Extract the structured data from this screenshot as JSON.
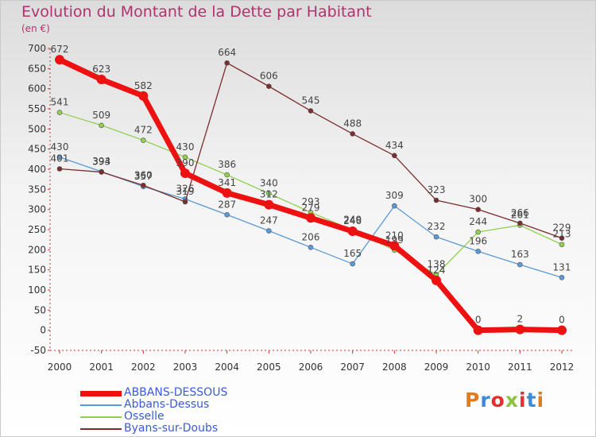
{
  "header": {
    "title": "Evolution du Montant de la Dette par Habitant",
    "unit": "(en €)"
  },
  "brand": {
    "text": "Proxiti",
    "colors": [
      "#e07b20",
      "#3c8ad8",
      "#e03030",
      "#8ac43c",
      "#e03030",
      "#3c8ad8",
      "#e07b20"
    ]
  },
  "chart_data": {
    "type": "line",
    "title": "Evolution du Montant de la Dette par Habitant",
    "ylabel": "(en €)",
    "xlabel": "",
    "x": [
      "2000",
      "2001",
      "2002",
      "2003",
      "2004",
      "2005",
      "2006",
      "2007",
      "2008",
      "2009",
      "2010",
      "2011",
      "2012"
    ],
    "ylim": [
      -50,
      700
    ],
    "yticks": [
      -50,
      0,
      50,
      100,
      150,
      200,
      250,
      300,
      350,
      400,
      450,
      500,
      550,
      600,
      650,
      700
    ],
    "grid": false,
    "legend_position": "bottom-left",
    "series": [
      {
        "name": "ABBANS-DESSOUS",
        "color": "#ee1111",
        "values": [
          672,
          623,
          582,
          390,
          341,
          312,
          279,
          246,
          210,
          124,
          0,
          2,
          0
        ]
      },
      {
        "name": "Abbans-Dessus",
        "color": "#5b9bd5",
        "values": [
          430,
          394,
          357,
          326,
          287,
          247,
          206,
          165,
          309,
          232,
          196,
          163,
          131
        ]
      },
      {
        "name": "Osselle",
        "color": "#92d050",
        "values": [
          541,
          509,
          472,
          430,
          386,
          340,
          293,
          249,
          199,
          138,
          244,
          261,
          213
        ]
      },
      {
        "name": "Byans-sur-Doubs",
        "color": "#7b2c2c",
        "values": [
          401,
          393,
          360,
          319,
          664,
          606,
          545,
          488,
          434,
          323,
          300,
          266,
          229
        ]
      }
    ]
  }
}
